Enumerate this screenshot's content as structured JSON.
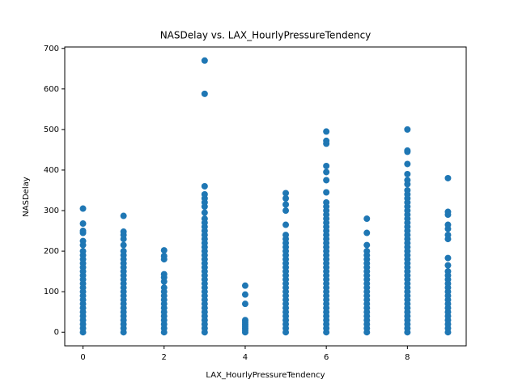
{
  "chart_data": {
    "type": "scatter",
    "title": "NASDelay vs. LAX_HourlyPressureTendency",
    "xlabel": "LAX_HourlyPressureTendency",
    "ylabel": "NASDelay",
    "color": "#1f77b4",
    "xlim": [
      -0.45,
      9.45
    ],
    "xticks": [
      0,
      2,
      4,
      6,
      8
    ],
    "ylim": [
      -33.5,
      703.5
    ],
    "yticks": [
      0,
      100,
      200,
      300,
      400,
      500,
      600,
      700
    ],
    "grid": false,
    "x": [
      0,
      0,
      0,
      0,
      0,
      0,
      0,
      0,
      0,
      0,
      0,
      0,
      0,
      0,
      0,
      0,
      0,
      0,
      0,
      0,
      0,
      0,
      0,
      0,
      0,
      0,
      0,
      1,
      1,
      1,
      1,
      1,
      1,
      1,
      1,
      1,
      1,
      1,
      1,
      1,
      1,
      1,
      1,
      1,
      1,
      1,
      1,
      1,
      1,
      1,
      1,
      1,
      1,
      2,
      2,
      2,
      2,
      2,
      2,
      2,
      2,
      2,
      2,
      2,
      2,
      2,
      2,
      2,
      2,
      2,
      2,
      3,
      3,
      3,
      3,
      3,
      3,
      3,
      3,
      3,
      3,
      3,
      3,
      3,
      3,
      3,
      3,
      3,
      3,
      3,
      3,
      3,
      3,
      3,
      3,
      3,
      3,
      3,
      3,
      3,
      3,
      3,
      3,
      3,
      3,
      3,
      3,
      3,
      4,
      4,
      4,
      4,
      4,
      4,
      4,
      4,
      4,
      4,
      5,
      5,
      5,
      5,
      5,
      5,
      5,
      5,
      5,
      5,
      5,
      5,
      5,
      5,
      5,
      5,
      5,
      5,
      5,
      5,
      5,
      5,
      5,
      5,
      5,
      5,
      5,
      5,
      5,
      5,
      6,
      6,
      6,
      6,
      6,
      6,
      6,
      6,
      6,
      6,
      6,
      6,
      6,
      6,
      6,
      6,
      6,
      6,
      6,
      6,
      6,
      6,
      6,
      6,
      6,
      6,
      6,
      6,
      6,
      6,
      6,
      6,
      6,
      6,
      6,
      6,
      6,
      6,
      6,
      6,
      7,
      7,
      7,
      7,
      7,
      7,
      7,
      7,
      7,
      7,
      7,
      7,
      7,
      7,
      7,
      7,
      7,
      7,
      7,
      7,
      7,
      7,
      7,
      7,
      8,
      8,
      8,
      8,
      8,
      8,
      8,
      8,
      8,
      8,
      8,
      8,
      8,
      8,
      8,
      8,
      8,
      8,
      8,
      8,
      8,
      8,
      8,
      8,
      8,
      8,
      8,
      8,
      8,
      8,
      8,
      8,
      8,
      8,
      8,
      8,
      8,
      8,
      8,
      8,
      8,
      8,
      8,
      9,
      9,
      9,
      9,
      9,
      9,
      9,
      9,
      9,
      9,
      9,
      9,
      9,
      9,
      9,
      9,
      9,
      9,
      9,
      9,
      9,
      9,
      9,
      9,
      9
    ],
    "y": [
      0,
      10,
      20,
      30,
      40,
      50,
      60,
      70,
      80,
      90,
      100,
      110,
      120,
      130,
      140,
      150,
      160,
      170,
      180,
      190,
      200,
      215,
      225,
      245,
      250,
      268,
      305,
      0,
      10,
      20,
      30,
      40,
      50,
      60,
      70,
      80,
      90,
      100,
      110,
      120,
      130,
      140,
      150,
      160,
      170,
      180,
      190,
      200,
      215,
      230,
      240,
      248,
      287,
      0,
      10,
      20,
      30,
      40,
      50,
      60,
      70,
      80,
      90,
      100,
      110,
      125,
      135,
      143,
      180,
      188,
      202,
      0,
      10,
      20,
      30,
      40,
      50,
      60,
      70,
      80,
      90,
      100,
      110,
      120,
      130,
      140,
      150,
      160,
      170,
      180,
      190,
      200,
      210,
      220,
      230,
      240,
      250,
      260,
      270,
      280,
      295,
      310,
      320,
      330,
      340,
      360,
      588,
      670,
      0,
      5,
      10,
      15,
      20,
      25,
      30,
      70,
      93,
      115,
      0,
      10,
      20,
      30,
      40,
      50,
      60,
      70,
      80,
      90,
      100,
      110,
      120,
      130,
      140,
      150,
      160,
      170,
      180,
      190,
      200,
      210,
      220,
      230,
      240,
      265,
      300,
      315,
      330,
      343,
      0,
      10,
      20,
      30,
      40,
      50,
      60,
      70,
      80,
      90,
      100,
      110,
      120,
      130,
      140,
      150,
      160,
      170,
      180,
      190,
      200,
      210,
      220,
      230,
      240,
      250,
      260,
      270,
      280,
      290,
      300,
      310,
      320,
      345,
      375,
      395,
      410,
      465,
      472,
      495,
      0,
      10,
      20,
      30,
      40,
      50,
      60,
      70,
      80,
      90,
      100,
      110,
      120,
      130,
      140,
      150,
      160,
      170,
      180,
      190,
      200,
      215,
      245,
      280,
      0,
      10,
      20,
      30,
      40,
      50,
      60,
      70,
      80,
      90,
      100,
      110,
      120,
      130,
      140,
      150,
      160,
      170,
      180,
      190,
      200,
      210,
      220,
      230,
      240,
      250,
      260,
      270,
      280,
      290,
      300,
      310,
      320,
      330,
      340,
      350,
      365,
      375,
      390,
      415,
      445,
      448,
      500,
      0,
      10,
      20,
      30,
      40,
      50,
      60,
      70,
      80,
      90,
      100,
      110,
      120,
      130,
      140,
      150,
      165,
      183,
      230,
      240,
      255,
      265,
      290,
      297,
      380
    ]
  }
}
